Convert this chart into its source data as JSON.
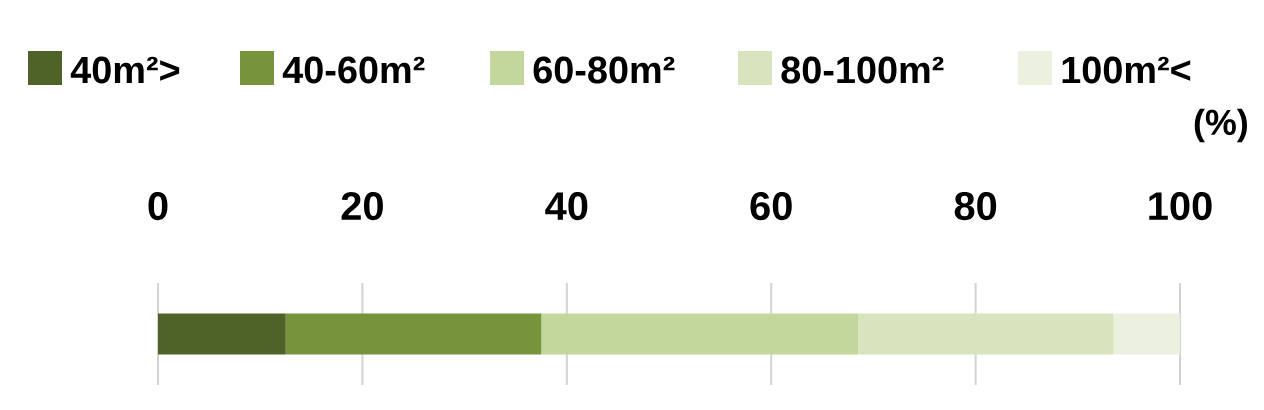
{
  "chart_data": {
    "type": "bar",
    "orientation": "horizontal",
    "stacked": true,
    "categories": [
      null
    ],
    "xlabel": "(%)",
    "series": [
      {
        "name": "40m²>",
        "color": "#4f6228",
        "values": [
          12.5
        ]
      },
      {
        "name": "40-60m²",
        "color": "#77933c",
        "values": [
          25
        ]
      },
      {
        "name": "60-80m²",
        "color": "#c3d69b",
        "values": [
          31
        ]
      },
      {
        "name": "80-100m²",
        "color": "#d7e4bd",
        "values": [
          25
        ]
      },
      {
        "name": "100m²<",
        "color": "#ebf1de",
        "values": [
          6.5
        ]
      }
    ],
    "xlim": [
      0,
      100
    ],
    "xticks": [
      0,
      20,
      40,
      60,
      80,
      100
    ],
    "grid": "x",
    "legend": "top"
  }
}
